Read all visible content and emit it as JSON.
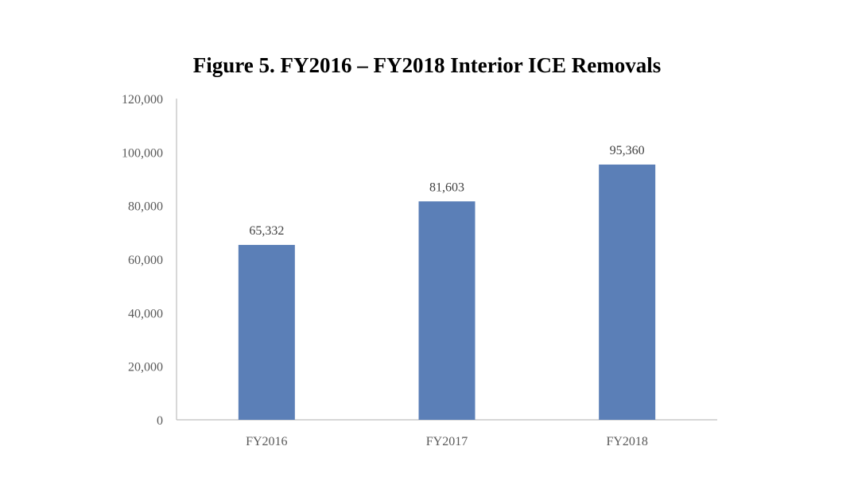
{
  "chart_data": {
    "type": "bar",
    "title": "Figure 5. FY2016 – FY2018 Interior ICE Removals",
    "categories": [
      "FY2016",
      "FY2017",
      "FY2018"
    ],
    "values": [
      65332,
      81603,
      95360
    ],
    "data_labels": [
      "65,332",
      "81,603",
      "95,360"
    ],
    "xlabel": "",
    "ylabel": "",
    "ylim": [
      0,
      120000
    ],
    "yticks": [
      0,
      20000,
      40000,
      60000,
      80000,
      100000,
      120000
    ],
    "ytick_labels": [
      "0",
      "20,000",
      "40,000",
      "60,000",
      "80,000",
      "100,000",
      "120,000"
    ],
    "grid": false,
    "legend": "none",
    "colors": {
      "bar": "#5b7fb7",
      "axis": "#bfbfbf",
      "tick_text": "#595959",
      "label_text": "#404040"
    }
  }
}
